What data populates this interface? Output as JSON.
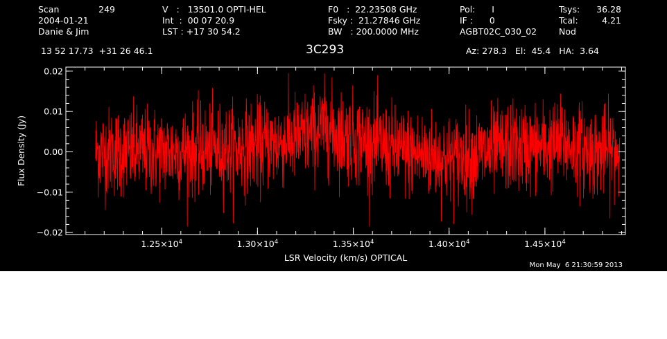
{
  "header": {
    "scan_label": "Scan",
    "scan_number": "249",
    "date": "2004-01-21",
    "observers": "Danie & Jim",
    "coords": "13 52 17.73  +31 26 46.1",
    "velocity": "V   :   13501.0 OPTI-HEL",
    "int_time": "Int  :  00 07 20.9",
    "lst": "LST : +17 30 54.2",
    "f0": "F0   :  22.23508 GHz",
    "fsky": "Fsky :  21.27846 GHz",
    "bw": "BW   : 200.0000 MHz",
    "pol": "Pol:      I",
    "if": "IF :      0",
    "project": "AGBT02C_030_02",
    "tsys_label": "Tsys:",
    "tsys_value": "36.28",
    "tcal_label": "Tcal:",
    "tcal_value": "4.21",
    "mode": "Nod",
    "source": "3C293",
    "az_el_ha": "Az: 278.3   El:  45.4   HA:  3.64"
  },
  "timestamp": "Mon May  6 21:30:59 2013",
  "colors": {
    "background": "#000000",
    "foreground": "#ffffff",
    "trace": "#ff0000"
  },
  "chart_data": {
    "type": "line",
    "title": "3C293",
    "xlabel": "LSR Velocity (km/s) OPTICAL",
    "ylabel": "Flux Density (Jy)",
    "xlim": [
      12000,
      14920
    ],
    "ylim": [
      -0.0205,
      0.021
    ],
    "x_range_of_data": [
      12155,
      14890
    ],
    "x_ticks": [
      {
        "value": 12500,
        "mantissa": "1.25",
        "exp": "4"
      },
      {
        "value": 13000,
        "mantissa": "1.30",
        "exp": "4"
      },
      {
        "value": 13500,
        "mantissa": "1.35",
        "exp": "4"
      },
      {
        "value": 14000,
        "mantissa": "1.40",
        "exp": "4"
      },
      {
        "value": 14500,
        "mantissa": "1.45",
        "exp": "4"
      }
    ],
    "y_ticks": [
      {
        "value": -0.02,
        "label": "−0.02"
      },
      {
        "value": -0.01,
        "label": "−0.01"
      },
      {
        "value": 0.0,
        "label": "0.00"
      },
      {
        "value": 0.01,
        "label": "0.01"
      },
      {
        "value": 0.02,
        "label": "0.02"
      }
    ],
    "grid": false,
    "series": [
      {
        "style": "noisy spectrum, approx. 2000 channels",
        "trend_x": [
          12155,
          12300,
          12600,
          12900,
          13100,
          13250,
          13350,
          13450,
          13600,
          13750,
          13900,
          14000,
          14150,
          14300,
          14450,
          14600,
          14750,
          14890
        ],
        "trend_y": [
          0.0,
          0.0,
          0.0,
          0.001,
          0.002,
          0.004,
          0.006,
          0.004,
          0.002,
          0.0,
          -0.001,
          -0.002,
          -0.001,
          0.001,
          0.001,
          0.002,
          0.0,
          0.0
        ],
        "noise_rms": 0.0055,
        "max": 0.0195,
        "min": -0.0185
      }
    ]
  }
}
